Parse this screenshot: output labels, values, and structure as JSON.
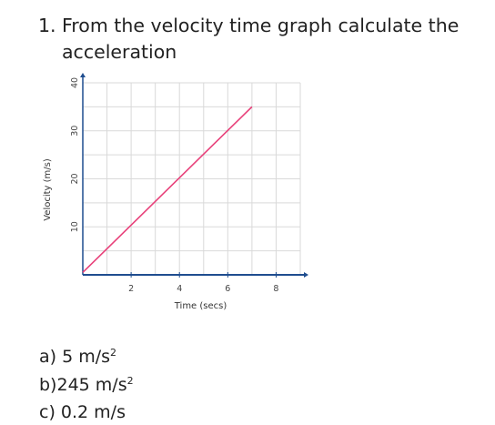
{
  "question": {
    "number": "1.",
    "text_line1": "From the velocity time graph calculate the",
    "text_line2": "acceleration"
  },
  "answers": [
    {
      "label": "a)",
      "text": "5 m/s",
      "sup": "2"
    },
    {
      "label": "b)",
      "text": "245 m/s",
      "sup": "2"
    },
    {
      "label": "c)",
      "text": "0.2 m/s",
      "sup": ""
    }
  ],
  "chart_data": {
    "type": "line",
    "title": "",
    "xlabel": "Time (secs)",
    "ylabel": "Velocity (m/s)",
    "xlim": [
      0,
      9
    ],
    "ylim": [
      0,
      40
    ],
    "x_ticks": [
      2,
      4,
      6,
      8
    ],
    "y_ticks": [
      10,
      20,
      30,
      40
    ],
    "grid": true,
    "series": [
      {
        "color": "#e8417a",
        "x": [
          0,
          7
        ],
        "y": [
          0.5,
          35
        ]
      }
    ],
    "axis_color": "#1f4d8f",
    "grid_color": "#d9d9d9"
  }
}
